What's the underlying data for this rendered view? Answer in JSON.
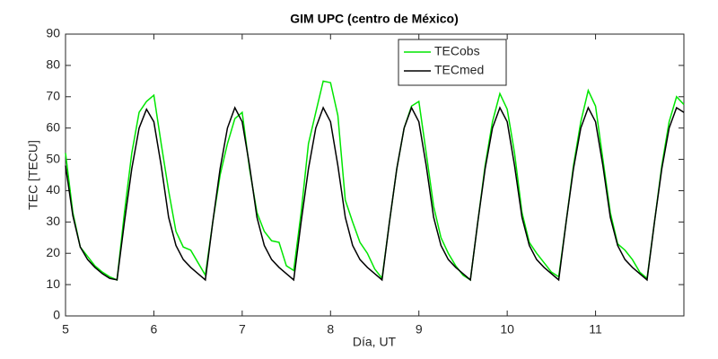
{
  "chart_data": {
    "type": "line",
    "title": "GIM UPC (centro de México)",
    "x_label": "Día, UT",
    "y_label": "TEC [TECU]",
    "x": [
      5,
      5.083,
      5.167,
      5.25,
      5.333,
      5.417,
      5.5,
      5.583,
      5.667,
      5.75,
      5.833,
      5.917,
      6,
      6.083,
      6.167,
      6.25,
      6.333,
      6.417,
      6.5,
      6.583,
      6.667,
      6.75,
      6.833,
      6.917,
      7,
      7.083,
      7.167,
      7.25,
      7.333,
      7.417,
      7.5,
      7.583,
      7.667,
      7.75,
      7.833,
      7.917,
      8,
      8.083,
      8.167,
      8.25,
      8.333,
      8.417,
      8.5,
      8.583,
      8.667,
      8.75,
      8.833,
      8.917,
      9,
      9.083,
      9.167,
      9.25,
      9.333,
      9.417,
      9.5,
      9.583,
      9.667,
      9.75,
      9.833,
      9.917,
      10,
      10.083,
      10.167,
      10.25,
      10.333,
      10.417,
      10.5,
      10.583,
      10.667,
      10.75,
      10.833,
      10.917,
      11,
      11.083,
      11.167,
      11.25,
      11.333,
      11.417,
      11.5,
      11.583,
      11.667,
      11.75,
      11.833,
      11.917,
      12
    ],
    "series": [
      {
        "name": "TECobs",
        "color": "#00e600",
        "values": [
          52,
          33,
          22,
          19,
          16,
          14,
          12.5,
          11.5,
          33,
          52,
          65,
          68.5,
          70.5,
          55,
          40,
          27,
          22,
          21,
          17,
          13,
          30,
          45,
          55,
          63,
          65,
          47,
          33,
          27,
          24,
          23.5,
          16,
          14.5,
          33,
          55,
          65,
          75,
          74.5,
          64,
          37,
          30,
          23.5,
          20,
          15,
          12,
          30,
          47,
          60,
          67,
          68.5,
          52,
          35,
          25,
          20,
          16,
          13,
          11.5,
          30,
          48,
          62,
          71,
          66,
          52,
          33,
          23.5,
          20,
          17,
          14,
          12.5,
          30,
          48,
          62,
          72,
          67,
          50,
          33,
          23,
          21,
          18,
          14,
          12,
          30,
          48,
          62,
          70,
          67.5
        ]
      },
      {
        "name": "TECmed",
        "color": "#000000",
        "values": [
          48,
          32,
          22,
          18,
          15.5,
          13.5,
          12,
          11.5,
          30,
          47,
          60,
          66,
          62,
          48,
          31.5,
          22.5,
          18,
          15.5,
          13.5,
          11.5,
          30,
          47,
          60,
          66.5,
          62,
          48,
          31.5,
          22.5,
          18,
          15.5,
          13.5,
          11.5,
          30,
          47,
          60,
          66.5,
          62,
          48,
          31.5,
          22.5,
          18,
          15.5,
          13.5,
          11.5,
          30,
          47,
          60,
          66.5,
          62,
          48,
          31.5,
          22.5,
          18,
          15.5,
          13.5,
          11.5,
          30,
          47,
          60,
          66.5,
          62,
          48,
          31.5,
          22.5,
          18,
          15.5,
          13.5,
          11.5,
          30,
          47,
          60,
          66.5,
          62,
          48,
          31.5,
          22.5,
          18,
          15.5,
          13.5,
          11.5,
          30,
          47,
          60,
          66.5,
          65
        ]
      }
    ],
    "xlim": [
      5,
      12
    ],
    "xticks": [
      5,
      6,
      7,
      8,
      9,
      10,
      11
    ],
    "ylim": [
      0,
      90
    ],
    "yticks": [
      0,
      10,
      20,
      30,
      40,
      50,
      60,
      70,
      80,
      90
    ],
    "grid": false,
    "legend": "top-right"
  }
}
